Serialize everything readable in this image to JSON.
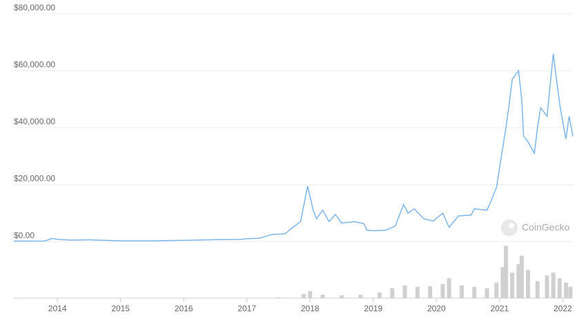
{
  "chart_data": {
    "type": "line",
    "watermark": "CoinGecko",
    "xlim": [
      2013.31,
      2022.16
    ],
    "xticks": [
      2014,
      2015,
      2016,
      2017,
      2018,
      2019,
      2020,
      2021,
      2022
    ],
    "ylim": [
      0,
      80000
    ],
    "yticks": [
      {
        "value": 0,
        "label": "$0.00"
      },
      {
        "value": 20000,
        "label": "$20,000.00"
      },
      {
        "value": 40000,
        "label": "$40,000.00"
      },
      {
        "value": 60000,
        "label": "$60,000.00"
      },
      {
        "value": 80000,
        "label": "$80,000.00"
      }
    ],
    "y2lim": [
      0,
      200
    ],
    "grid": true,
    "series": [
      {
        "color": "#7cb5ec",
        "x": [
          2013.31,
          2013.8,
          2013.92,
          2014.0,
          2014.2,
          2014.5,
          2014.9,
          2015.0,
          2015.5,
          2015.9,
          2016.0,
          2016.5,
          2016.9,
          2017.0,
          2017.2,
          2017.4,
          2017.6,
          2017.7,
          2017.85,
          2017.96,
          2018.05,
          2018.1,
          2018.2,
          2018.3,
          2018.4,
          2018.5,
          2018.7,
          2018.85,
          2018.9,
          2019.0,
          2019.2,
          2019.35,
          2019.48,
          2019.55,
          2019.65,
          2019.8,
          2019.95,
          2020.1,
          2020.2,
          2020.35,
          2020.55,
          2020.6,
          2020.8,
          2020.85,
          2020.95,
          2021.05,
          2021.1,
          2021.15,
          2021.2,
          2021.3,
          2021.35,
          2021.38,
          2021.45,
          2021.55,
          2021.6,
          2021.65,
          2021.75,
          2021.8,
          2021.85,
          2021.9,
          2021.96,
          2022.05,
          2022.1,
          2022.16
        ],
        "values": [
          150,
          200,
          1100,
          800,
          500,
          600,
          350,
          250,
          250,
          400,
          430,
          650,
          750,
          1000,
          1200,
          2500,
          2700,
          4500,
          7000,
          19500,
          11000,
          8000,
          11000,
          7000,
          9500,
          6500,
          7000,
          6300,
          4000,
          3800,
          4000,
          5500,
          13000,
          10000,
          11500,
          8000,
          7200,
          10000,
          5000,
          9000,
          9300,
          11500,
          11000,
          13500,
          19000,
          33000,
          40000,
          48000,
          57000,
          60000,
          50000,
          37000,
          35000,
          31000,
          40000,
          47000,
          44000,
          55000,
          66000,
          57000,
          47000,
          36000,
          44000,
          37000
        ]
      },
      {
        "color": "#d0d0d0",
        "axis": "y2",
        "x": [
          2017.5,
          2017.9,
          2018.0,
          2018.2,
          2018.5,
          2018.8,
          2019.1,
          2019.3,
          2019.5,
          2019.7,
          2019.9,
          2020.1,
          2020.2,
          2020.4,
          2020.6,
          2020.8,
          2020.95,
          2021.05,
          2021.1,
          2021.2,
          2021.3,
          2021.35,
          2021.45,
          2021.6,
          2021.75,
          2021.85,
          2021.95,
          2022.05,
          2022.12
        ],
        "values": [
          3,
          15,
          25,
          12,
          10,
          12,
          20,
          35,
          45,
          40,
          42,
          50,
          70,
          45,
          40,
          35,
          55,
          110,
          185,
          90,
          120,
          150,
          100,
          60,
          80,
          90,
          70,
          55,
          40
        ]
      }
    ]
  }
}
